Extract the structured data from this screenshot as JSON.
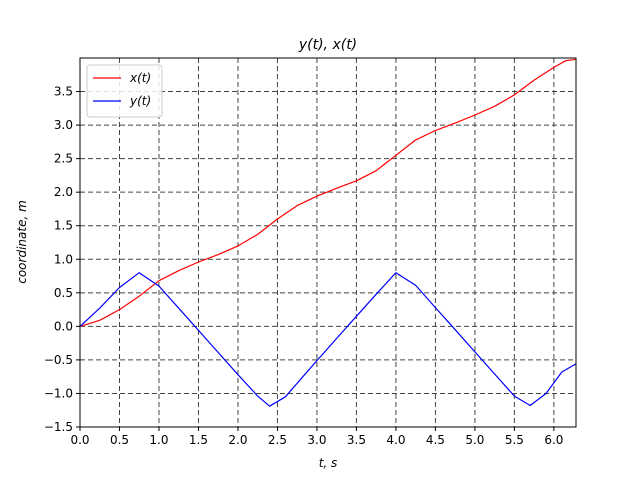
{
  "chart_data": {
    "type": "line",
    "title": "y(t), x(t)",
    "xlabel": "t, s",
    "ylabel": "coordinate, m",
    "xlim": [
      0,
      6.28
    ],
    "ylim": [
      -1.5,
      4.0
    ],
    "grid": true,
    "grid_style": "dashed",
    "legend_position": "top-left",
    "xticks": [
      0.0,
      0.5,
      1.0,
      1.5,
      2.0,
      2.5,
      3.0,
      3.5,
      4.0,
      4.5,
      5.0,
      5.5,
      6.0
    ],
    "xtick_labels": [
      "0.0",
      "0.5",
      "1.0",
      "1.5",
      "2.0",
      "2.5",
      "3.0",
      "3.5",
      "4.0",
      "4.5",
      "5.0",
      "5.5",
      "6.0"
    ],
    "yticks": [
      -1.5,
      -1.0,
      -0.5,
      0.0,
      0.5,
      1.0,
      1.5,
      2.0,
      2.5,
      3.0,
      3.5
    ],
    "ytick_labels": [
      "−1.5",
      "−1.0",
      "−0.5",
      "0.0",
      "0.5",
      "1.0",
      "1.5",
      "2.0",
      "2.5",
      "3.0",
      "3.5"
    ],
    "series": [
      {
        "name": "x(t)",
        "color": "#ff0000",
        "x": [
          0.0,
          0.25,
          0.5,
          0.75,
          1.0,
          1.25,
          1.5,
          1.75,
          2.0,
          2.25,
          2.5,
          2.75,
          3.0,
          3.25,
          3.5,
          3.75,
          4.0,
          4.25,
          4.5,
          4.75,
          5.0,
          5.25,
          5.5,
          5.75,
          6.0,
          6.15,
          6.28
        ],
        "values": [
          0.0,
          0.09,
          0.25,
          0.45,
          0.68,
          0.83,
          0.96,
          1.07,
          1.2,
          1.37,
          1.6,
          1.8,
          1.94,
          2.06,
          2.17,
          2.32,
          2.55,
          2.78,
          2.92,
          3.03,
          3.15,
          3.28,
          3.45,
          3.67,
          3.86,
          3.96,
          3.98
        ]
      },
      {
        "name": "y(t)",
        "color": "#0000ff",
        "x": [
          0.0,
          0.25,
          0.5,
          0.75,
          1.0,
          1.25,
          1.5,
          1.75,
          2.0,
          2.25,
          2.4,
          2.6,
          2.8,
          3.0,
          3.25,
          3.5,
          3.75,
          4.0,
          4.25,
          4.5,
          4.75,
          5.0,
          5.25,
          5.5,
          5.7,
          5.9,
          6.1,
          6.28
        ],
        "values": [
          0.0,
          0.27,
          0.58,
          0.8,
          0.6,
          0.27,
          -0.06,
          -0.39,
          -0.72,
          -1.04,
          -1.19,
          -1.05,
          -0.78,
          -0.51,
          -0.18,
          0.15,
          0.48,
          0.8,
          0.61,
          0.28,
          -0.05,
          -0.38,
          -0.71,
          -1.04,
          -1.18,
          -1.0,
          -0.68,
          -0.56
        ]
      }
    ]
  }
}
